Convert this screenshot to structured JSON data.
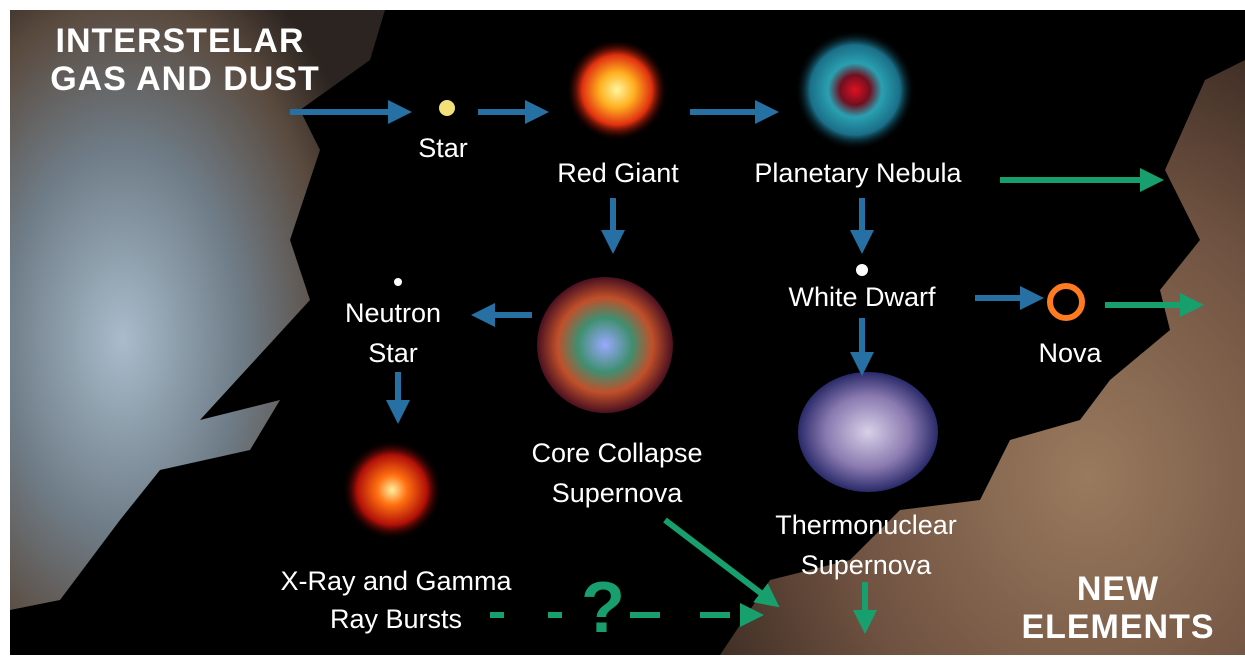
{
  "header": {
    "lines": [
      "INTERSTELAR",
      "GAS AND DUST"
    ]
  },
  "nodes": [
    {
      "lines": [
        "Star"
      ]
    },
    {
      "lines": [
        "Red Giant"
      ]
    },
    {
      "lines": [
        "Planetary Nebula"
      ]
    },
    {
      "lines": [
        "White Dwarf"
      ]
    },
    {
      "lines": [
        "Nova"
      ]
    },
    {
      "lines": [
        "Neutron",
        "Star"
      ]
    },
    {
      "lines": [
        "Core Collapse",
        "Supernova"
      ]
    },
    {
      "lines": [
        "Thermonuclear",
        "Supernova"
      ]
    },
    {
      "lines": [
        "X-Ray and Gamma",
        "Ray Bursts"
      ]
    }
  ],
  "unknown_mark": "?",
  "footer": {
    "lines": [
      "NEW",
      "ELEMENTS"
    ]
  }
}
